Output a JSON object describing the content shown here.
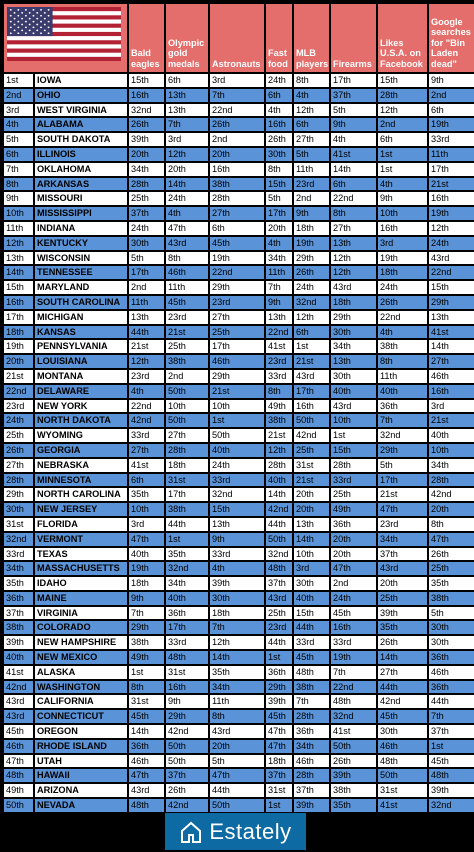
{
  "header": {
    "columns": [
      "Bald eagles",
      "Olympic gold medals",
      "Astronauts",
      "Fast food",
      "MLB players",
      "Firearms",
      "Likes U.S.A. on Facebook",
      "Google searches for \"Bin Laden dead\""
    ]
  },
  "footer": {
    "brand": "Estately"
  },
  "colors": {
    "header_bg": "#e36e6b",
    "row_blue": "#5a93d8",
    "row_white": "#ffffff",
    "footer_bg": "#0e6aa3"
  },
  "chart_data": {
    "type": "table",
    "columns": [
      "Rank",
      "State",
      "Bald eagles",
      "Olympic gold medals",
      "Astronauts",
      "Fast food",
      "MLB players",
      "Firearms",
      "Likes U.S.A. on Facebook",
      "Google searches for \"Bin Laden dead\""
    ],
    "rows": [
      [
        "1st",
        "IOWA",
        "15th",
        "6th",
        "3rd",
        "24th",
        "8th",
        "17th",
        "15th",
        "9th"
      ],
      [
        "2nd",
        "OHIO",
        "16th",
        "13th",
        "7th",
        "6th",
        "4th",
        "37th",
        "28th",
        "2nd"
      ],
      [
        "3rd",
        "WEST VIRGINIA",
        "32nd",
        "13th",
        "22nd",
        "4th",
        "12th",
        "5th",
        "12th",
        "6th"
      ],
      [
        "4th",
        "ALABAMA",
        "26th",
        "7th",
        "26th",
        "16th",
        "6th",
        "9th",
        "2nd",
        "19th"
      ],
      [
        "5th",
        "SOUTH DAKOTA",
        "39th",
        "3rd",
        "2nd",
        "26th",
        "27th",
        "4th",
        "6th",
        "33rd"
      ],
      [
        "6th",
        "ILLINOIS",
        "20th",
        "12th",
        "20th",
        "30th",
        "5th",
        "41st",
        "1st",
        "11th"
      ],
      [
        "7th",
        "OKLAHOMA",
        "34th",
        "20th",
        "16th",
        "8th",
        "11th",
        "14th",
        "1st",
        "17th"
      ],
      [
        "8th",
        "ARKANSAS",
        "28th",
        "14th",
        "38th",
        "15th",
        "23rd",
        "6th",
        "4th",
        "21st"
      ],
      [
        "9th",
        "MISSOURI",
        "25th",
        "24th",
        "28th",
        "5th",
        "2nd",
        "22nd",
        "9th",
        "16th"
      ],
      [
        "10th",
        "MISSISSIPPI",
        "37th",
        "4th",
        "27th",
        "17th",
        "9th",
        "8th",
        "10th",
        "19th"
      ],
      [
        "11th",
        "INDIANA",
        "24th",
        "47th",
        "6th",
        "20th",
        "18th",
        "27th",
        "16th",
        "12th"
      ],
      [
        "12th",
        "KENTUCKY",
        "30th",
        "43rd",
        "45th",
        "4th",
        "19th",
        "13th",
        "3rd",
        "24th"
      ],
      [
        "13th",
        "WISCONSIN",
        "5th",
        "8th",
        "19th",
        "34th",
        "29th",
        "12th",
        "19th",
        "43rd"
      ],
      [
        "14th",
        "TENNESSEE",
        "17th",
        "46th",
        "22nd",
        "11th",
        "26th",
        "12th",
        "18th",
        "22nd"
      ],
      [
        "15th",
        "MARYLAND",
        "2nd",
        "11th",
        "29th",
        "7th",
        "24th",
        "43rd",
        "24th",
        "15th"
      ],
      [
        "16th",
        "SOUTH CAROLINA",
        "11th",
        "45th",
        "23rd",
        "9th",
        "32nd",
        "18th",
        "26th",
        "29th"
      ],
      [
        "17th",
        "MICHIGAN",
        "13th",
        "23rd",
        "27th",
        "13th",
        "12th",
        "29th",
        "22nd",
        "13th"
      ],
      [
        "18th",
        "KANSAS",
        "44th",
        "21st",
        "25th",
        "22nd",
        "6th",
        "30th",
        "4th",
        "41st"
      ],
      [
        "19th",
        "PENNSYLVANIA",
        "21st",
        "25th",
        "17th",
        "41st",
        "1st",
        "34th",
        "38th",
        "14th"
      ],
      [
        "20th",
        "LOUISIANA",
        "12th",
        "38th",
        "46th",
        "23rd",
        "21st",
        "13th",
        "8th",
        "27th"
      ],
      [
        "21st",
        "MONTANA",
        "23rd",
        "2nd",
        "29th",
        "33rd",
        "43rd",
        "30th",
        "11th",
        "46th"
      ],
      [
        "22nd",
        "DELAWARE",
        "4th",
        "50th",
        "21st",
        "8th",
        "17th",
        "40th",
        "40th",
        "16th"
      ],
      [
        "23rd",
        "NEW YORK",
        "22nd",
        "10th",
        "10th",
        "49th",
        "16th",
        "43rd",
        "36th",
        "3rd"
      ],
      [
        "24th",
        "NORTH DAKOTA",
        "42nd",
        "50th",
        "1st",
        "38th",
        "50th",
        "10th",
        "7th",
        "21st"
      ],
      [
        "25th",
        "WYOMING",
        "33rd",
        "27th",
        "50th",
        "21st",
        "42nd",
        "1st",
        "32nd",
        "40th"
      ],
      [
        "26th",
        "GEORGIA",
        "27th",
        "28th",
        "40th",
        "12th",
        "25th",
        "15th",
        "29th",
        "10th"
      ],
      [
        "27th",
        "NEBRASKA",
        "41st",
        "18th",
        "24th",
        "28th",
        "31st",
        "28th",
        "5th",
        "34th"
      ],
      [
        "28th",
        "MINNESOTA",
        "6th",
        "31st",
        "33rd",
        "40th",
        "21st",
        "33rd",
        "17th",
        "28th"
      ],
      [
        "29th",
        "NORTH CAROLINA",
        "35th",
        "17th",
        "32nd",
        "14th",
        "20th",
        "25th",
        "21st",
        "42nd"
      ],
      [
        "30th",
        "NEW JERSEY",
        "10th",
        "38th",
        "15th",
        "42nd",
        "20th",
        "49th",
        "47th",
        "20th"
      ],
      [
        "31st",
        "FLORIDA",
        "3rd",
        "44th",
        "13th",
        "44th",
        "13th",
        "36th",
        "23rd",
        "8th"
      ],
      [
        "32nd",
        "VERMONT",
        "47th",
        "1st",
        "9th",
        "50th",
        "14th",
        "20th",
        "34th",
        "47th"
      ],
      [
        "33rd",
        "TEXAS",
        "40th",
        "35th",
        "33rd",
        "32nd",
        "10th",
        "20th",
        "37th",
        "26th"
      ],
      [
        "34th",
        "MASSACHUSETTS",
        "19th",
        "32nd",
        "4th",
        "48th",
        "3rd",
        "47th",
        "43rd",
        "25th"
      ],
      [
        "35th",
        "IDAHO",
        "18th",
        "34th",
        "39th",
        "37th",
        "30th",
        "2nd",
        "20th",
        "35th"
      ],
      [
        "36th",
        "MAINE",
        "9th",
        "40th",
        "30th",
        "43rd",
        "40th",
        "24th",
        "25th",
        "38th"
      ],
      [
        "37th",
        "VIRGINIA",
        "7th",
        "36th",
        "18th",
        "25th",
        "15th",
        "45th",
        "39th",
        "5th"
      ],
      [
        "38th",
        "COLORADO",
        "29th",
        "17th",
        "7th",
        "23rd",
        "44th",
        "16th",
        "35th",
        "30th"
      ],
      [
        "39th",
        "NEW HAMPSHIRE",
        "38th",
        "33rd",
        "12th",
        "44th",
        "33rd",
        "33rd",
        "26th",
        "30th"
      ],
      [
        "40th",
        "NEW MEXICO",
        "49th",
        "48th",
        "14th",
        "1st",
        "45th",
        "19th",
        "14th",
        "36th"
      ],
      [
        "41st",
        "ALASKA",
        "1st",
        "31st",
        "35th",
        "36th",
        "48th",
        "7th",
        "27th",
        "46th"
      ],
      [
        "42nd",
        "WASHINGTON",
        "8th",
        "16th",
        "34th",
        "29th",
        "38th",
        "22nd",
        "44th",
        "36th"
      ],
      [
        "43rd",
        "CALIFORNIA",
        "31st",
        "9th",
        "11th",
        "39th",
        "7th",
        "48th",
        "42nd",
        "44th"
      ],
      [
        "43rd",
        "CONNECTICUT",
        "45th",
        "29th",
        "8th",
        "45th",
        "28th",
        "32nd",
        "45th",
        "7th"
      ],
      [
        "45th",
        "OREGON",
        "14th",
        "42nd",
        "43rd",
        "47th",
        "36th",
        "41st",
        "30th",
        "37th"
      ],
      [
        "46th",
        "RHODE ISLAND",
        "36th",
        "50th",
        "20th",
        "47th",
        "34th",
        "50th",
        "46th",
        "1st"
      ],
      [
        "47th",
        "UTAH",
        "46th",
        "50th",
        "5th",
        "18th",
        "46th",
        "26th",
        "48th",
        "45th"
      ],
      [
        "48th",
        "HAWAII",
        "47th",
        "37th",
        "47th",
        "37th",
        "28th",
        "39th",
        "50th",
        "48th"
      ],
      [
        "49th",
        "ARIZONA",
        "43rd",
        "26th",
        "44th",
        "31st",
        "37th",
        "38th",
        "31st",
        "39th"
      ],
      [
        "50th",
        "NEVADA",
        "48th",
        "42nd",
        "50th",
        "1st",
        "39th",
        "35th",
        "41st",
        "32nd"
      ]
    ]
  }
}
